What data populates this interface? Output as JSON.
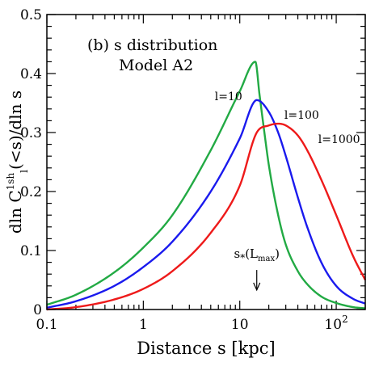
{
  "chart_data": {
    "type": "line",
    "panel_label": "(b) s distribution",
    "model_label": "Model A2",
    "xlabel": "Distance s [kpc]",
    "ylabel": {
      "pre": "dln C",
      "sup": "1sh",
      "sub": "l",
      "post": "(<s)/dln s"
    },
    "xscale": "log",
    "xlim": [
      0.1,
      200
    ],
    "ylim": [
      0,
      0.5
    ],
    "x_ticks": [
      {
        "value": 0.1,
        "label": "0.1"
      },
      {
        "value": 1,
        "label": "1"
      },
      {
        "value": 10,
        "label": "10"
      },
      {
        "value": 100,
        "label": "10",
        "sup": "2"
      }
    ],
    "y_ticks": [
      {
        "value": 0,
        "label": "0"
      },
      {
        "value": 0.1,
        "label": "0.1"
      },
      {
        "value": 0.2,
        "label": "0.2"
      },
      {
        "value": 0.3,
        "label": "0.3"
      },
      {
        "value": 0.4,
        "label": "0.4"
      },
      {
        "value": 0.5,
        "label": "0.5"
      }
    ],
    "series": [
      {
        "name": "l=10",
        "color": "#22aa44",
        "x": [
          0.1,
          0.2,
          0.5,
          1,
          2,
          5,
          10,
          14.5,
          16,
          18,
          20,
          25,
          30,
          40,
          50,
          70,
          100,
          150,
          200
        ],
        "y": [
          0.008,
          0.025,
          0.063,
          0.105,
          0.16,
          0.27,
          0.37,
          0.42,
          0.365,
          0.3,
          0.245,
          0.16,
          0.11,
          0.065,
          0.043,
          0.022,
          0.011,
          0.004,
          0.002
        ]
      },
      {
        "name": "l=100",
        "color": "#1a1aee",
        "x": [
          0.1,
          0.2,
          0.5,
          1,
          2,
          5,
          10,
          15,
          20,
          25,
          30,
          40,
          50,
          70,
          100,
          150,
          200
        ],
        "y": [
          0.003,
          0.014,
          0.04,
          0.072,
          0.115,
          0.2,
          0.29,
          0.355,
          0.335,
          0.3,
          0.26,
          0.19,
          0.14,
          0.08,
          0.04,
          0.018,
          0.01
        ]
      },
      {
        "name": "l=1000",
        "color": "#ee1a1a",
        "x": [
          0.1,
          0.2,
          0.5,
          1,
          2,
          5,
          10,
          15,
          20,
          25,
          30,
          40,
          50,
          70,
          100,
          150,
          200
        ],
        "y": [
          0.0,
          0.004,
          0.017,
          0.035,
          0.065,
          0.13,
          0.21,
          0.3,
          0.312,
          0.315,
          0.312,
          0.295,
          0.27,
          0.22,
          0.16,
          0.09,
          0.05
        ]
      }
    ],
    "series_labels": [
      {
        "text": "l=10",
        "x": 5.5,
        "y": 0.355
      },
      {
        "text": "l=100",
        "x": 29,
        "y": 0.323
      },
      {
        "text": "l=1000",
        "x": 65,
        "y": 0.282
      }
    ],
    "annotation": {
      "main": "s",
      "sub_star": "*",
      "paren_open": "(L",
      "sub_max": "max",
      "paren_close": ")",
      "arrow_x": 15,
      "arrow_y_from": 0.067,
      "arrow_y_to": 0.033,
      "label_y": 0.088
    }
  }
}
